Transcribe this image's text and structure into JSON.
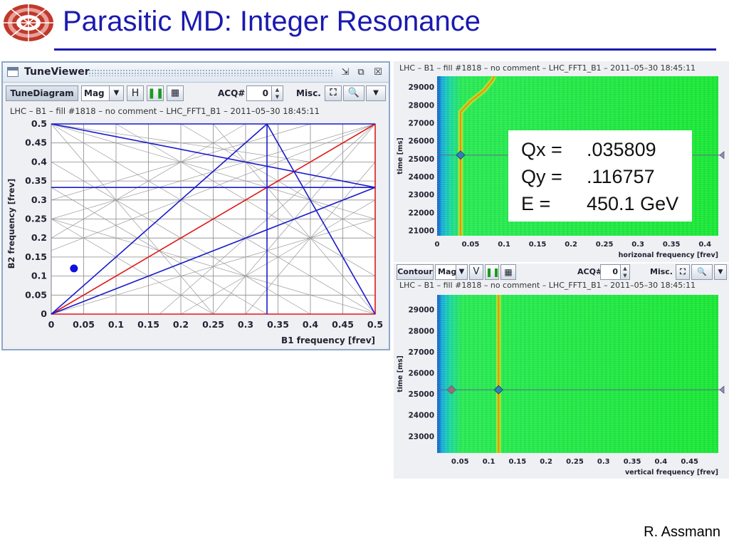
{
  "slide": {
    "title": "Parasitic MD: Integer Resonance",
    "author": "R. Assmann"
  },
  "tune_viewer": {
    "window_title": "TuneViewer",
    "toolbar": {
      "tune_diagram_label": "TuneDiagram",
      "mode_select": "Mag",
      "h_label": "H",
      "pause_icon": "pause-icon",
      "table_icon": "grid-icon",
      "acq_label": "ACQ#",
      "acq_value": "0",
      "misc_label": "Misc."
    },
    "caption": "LHC – B1 – fill #1818 – no comment – LHC_FFT1_B1 – 2011–05–30 18:45:11",
    "colors": {
      "accent": "#1a1ab0",
      "diagonal": "#e01818",
      "resonance": "#1a1acc",
      "grid": "#7a7a7a"
    },
    "chart_data": {
      "type": "scatter",
      "xlabel": "B1 frequency [frev]",
      "ylabel": "B2 frequency [frev]",
      "xlim": [
        0,
        0.5
      ],
      "ylim": [
        0,
        0.5
      ],
      "x_ticks": [
        "0",
        "0.05",
        "0.1",
        "0.15",
        "0.2",
        "0.25",
        "0.3",
        "0.35",
        "0.4",
        "0.45",
        "0.5"
      ],
      "y_ticks": [
        "0",
        "0.05",
        "0.1",
        "0.15",
        "0.2",
        "0.25",
        "0.3",
        "0.35",
        "0.4",
        "0.45",
        "0.5"
      ],
      "working_point": {
        "x": 0.035,
        "y": 0.12
      },
      "blue_lines": [
        [
          [
            0,
            0.5
          ],
          [
            0.5,
            0.333
          ]
        ],
        [
          [
            0,
            0.5
          ],
          [
            0.5,
            0.5
          ]
        ],
        [
          [
            0,
            0
          ],
          [
            0.333,
            0.5
          ]
        ],
        [
          [
            0.333,
            0.5
          ],
          [
            0.5,
            0
          ]
        ],
        [
          [
            0.333,
            0
          ],
          [
            0.333,
            0.5
          ]
        ],
        [
          [
            0,
            0.333
          ],
          [
            0.5,
            0.333
          ]
        ],
        [
          [
            0,
            0
          ],
          [
            0.5,
            0.333
          ]
        ]
      ],
      "red_lines": [
        [
          [
            0,
            0
          ],
          [
            0.5,
            0.5
          ]
        ],
        [
          [
            0.5,
            0
          ],
          [
            0.5,
            0.5
          ]
        ],
        [
          [
            0,
            0
          ],
          [
            0.5,
            0
          ]
        ]
      ]
    }
  },
  "horizontal_spectrum": {
    "caption": "LHC – B1 – fill #1818 – no comment – LHC_FFT1_B1 – 2011–05–30 18:45:11",
    "chart_data": {
      "type": "heatmap",
      "xlabel": "horizonal frequency [frev]",
      "ylabel": "time [ms]",
      "xlim": [
        0,
        0.42
      ],
      "ylim": [
        20700,
        29600
      ],
      "x_ticks": [
        "0",
        "0.05",
        "0.1",
        "0.15",
        "0.2",
        "0.25",
        "0.3",
        "0.35",
        "0.4"
      ],
      "y_ticks": [
        "21000",
        "22000",
        "23000",
        "24000",
        "25000",
        "26000",
        "27000",
        "28000",
        "29000"
      ],
      "marker": {
        "x": 0.035,
        "time": 25200
      },
      "tune_line": [
        {
          "x": 0.035,
          "time": 20700
        },
        {
          "x": 0.035,
          "time": 27600
        },
        {
          "x": 0.05,
          "time": 28200
        },
        {
          "x": 0.07,
          "time": 28800
        },
        {
          "x": 0.083,
          "time": 29400
        },
        {
          "x": 0.085,
          "time": 29600
        }
      ]
    },
    "overlay": {
      "qx_label": "Qx =",
      "qx_value": ".035809",
      "qy_label": "Qy =",
      "qy_value": ".116757",
      "e_label": "E =",
      "e_value": "450.1 GeV"
    }
  },
  "vertical_spectrum": {
    "toolbar": {
      "contour_label": "Contour",
      "mode_select": "Mag",
      "v_label": "V",
      "acq_label": "ACQ#",
      "acq_value": "0",
      "misc_label": "Misc."
    },
    "caption": "LHC – B1 – fill #1818 – no comment – LHC_FFT1_B1 – 2011–05–30 18:45:11",
    "chart_data": {
      "type": "heatmap",
      "xlabel": "vertical frequency [frev]",
      "ylabel": "time [ms]",
      "xlim": [
        0.01,
        0.5
      ],
      "ylim": [
        22200,
        29700
      ],
      "x_ticks": [
        "0.05",
        "0.1",
        "0.15",
        "0.2",
        "0.25",
        "0.3",
        "0.35",
        "0.4",
        "0.45"
      ],
      "y_ticks": [
        "23000",
        "24000",
        "25000",
        "26000",
        "27000",
        "28000",
        "29000"
      ],
      "marker": {
        "x": 0.117,
        "time": 25200
      },
      "ghost_marker": {
        "x": 0.035,
        "time": 25200
      },
      "tune_line": [
        {
          "x": 0.117,
          "time": 22200
        },
        {
          "x": 0.117,
          "time": 29700
        }
      ]
    }
  }
}
